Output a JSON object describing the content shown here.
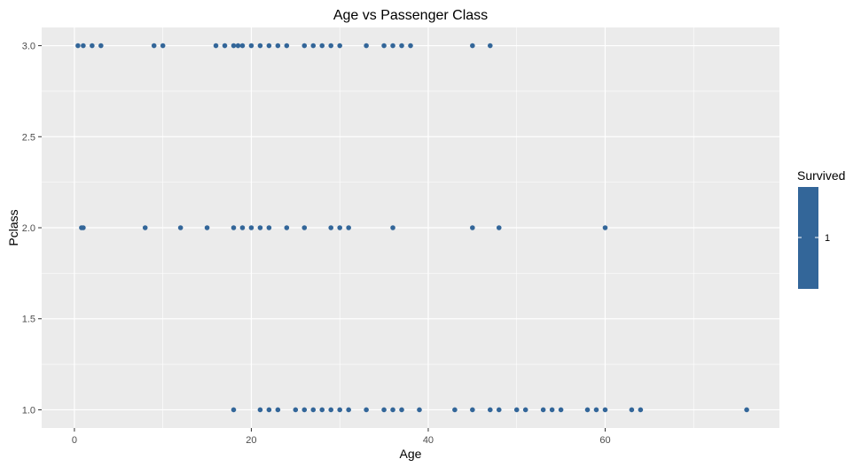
{
  "chart_data": {
    "type": "scatter",
    "title": "Age vs Passenger Class",
    "xlabel": "Age",
    "ylabel": "Pclass",
    "xlim": [
      -3.7,
      79.7
    ],
    "ylim": [
      0.9,
      3.1
    ],
    "xticks": [
      0,
      20,
      40,
      60
    ],
    "xtick_labels": [
      "0",
      "20",
      "40",
      "60"
    ],
    "yticks": [
      1.0,
      1.5,
      2.0,
      2.5,
      3.0
    ],
    "ytick_labels": [
      "1.0",
      "1.5",
      "2.0",
      "2.5",
      "3.0"
    ],
    "grid": true,
    "legend": {
      "title": "Survived",
      "position": "right",
      "type": "colorbar",
      "labels": [
        "1"
      ]
    },
    "point_color": "#336699",
    "panel_background": "#ebebeb",
    "grid_color": "#ffffff",
    "series": [
      {
        "points": [
          [
            0.4,
            3
          ],
          [
            1,
            3
          ],
          [
            2,
            3
          ],
          [
            3,
            3
          ],
          [
            9,
            3
          ],
          [
            10,
            3
          ],
          [
            16,
            3
          ],
          [
            17,
            3
          ],
          [
            18,
            3
          ],
          [
            18.5,
            3
          ],
          [
            19,
            3
          ],
          [
            20,
            3
          ],
          [
            21,
            3
          ],
          [
            22,
            3
          ],
          [
            23,
            3
          ],
          [
            24,
            3
          ],
          [
            26,
            3
          ],
          [
            27,
            3
          ],
          [
            28,
            3
          ],
          [
            29,
            3
          ],
          [
            30,
            3
          ],
          [
            33,
            3
          ],
          [
            35,
            3
          ],
          [
            36,
            3
          ],
          [
            37,
            3
          ],
          [
            38,
            3
          ],
          [
            45,
            3
          ],
          [
            47,
            3
          ],
          [
            0.8,
            2
          ],
          [
            1,
            2
          ],
          [
            8,
            2
          ],
          [
            12,
            2
          ],
          [
            15,
            2
          ],
          [
            18,
            2
          ],
          [
            19,
            2
          ],
          [
            20,
            2
          ],
          [
            21,
            2
          ],
          [
            22,
            2
          ],
          [
            24,
            2
          ],
          [
            26,
            2
          ],
          [
            29,
            2
          ],
          [
            30,
            2
          ],
          [
            31,
            2
          ],
          [
            36,
            2
          ],
          [
            45,
            2
          ],
          [
            48,
            2
          ],
          [
            60,
            2
          ],
          [
            18,
            1
          ],
          [
            21,
            1
          ],
          [
            22,
            1
          ],
          [
            23,
            1
          ],
          [
            25,
            1
          ],
          [
            26,
            1
          ],
          [
            27,
            1
          ],
          [
            28,
            1
          ],
          [
            29,
            1
          ],
          [
            30,
            1
          ],
          [
            31,
            1
          ],
          [
            33,
            1
          ],
          [
            35,
            1
          ],
          [
            36,
            1
          ],
          [
            37,
            1
          ],
          [
            39,
            1
          ],
          [
            43,
            1
          ],
          [
            45,
            1
          ],
          [
            47,
            1
          ],
          [
            48,
            1
          ],
          [
            50,
            1
          ],
          [
            51,
            1
          ],
          [
            53,
            1
          ],
          [
            54,
            1
          ],
          [
            55,
            1
          ],
          [
            58,
            1
          ],
          [
            59,
            1
          ],
          [
            60,
            1
          ],
          [
            63,
            1
          ],
          [
            64,
            1
          ],
          [
            76,
            1
          ]
        ]
      }
    ]
  }
}
